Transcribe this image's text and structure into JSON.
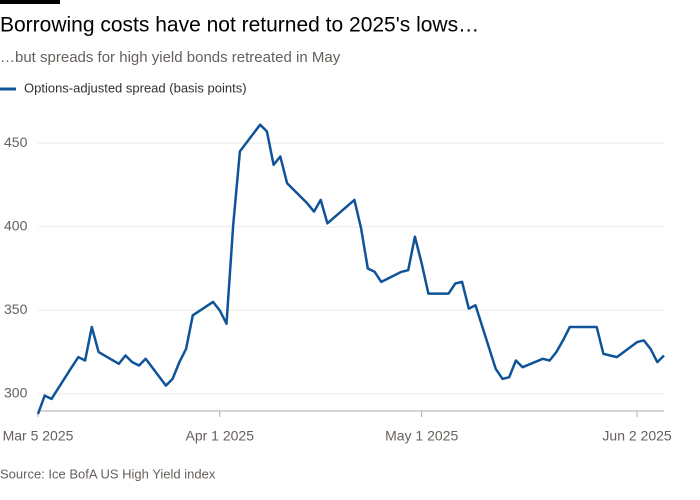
{
  "chart_data": {
    "type": "line",
    "title": "Borrowing costs have not returned to 2025's lows…",
    "subtitle": "…but spreads for high yield bonds retreated in May",
    "source": "Source: Ice BofA US High Yield index",
    "x": [
      "2025-03-05",
      "2025-03-06",
      "2025-03-07",
      "2025-03-10",
      "2025-03-11",
      "2025-03-12",
      "2025-03-13",
      "2025-03-14",
      "2025-03-17",
      "2025-03-18",
      "2025-03-19",
      "2025-03-20",
      "2025-03-21",
      "2025-03-24",
      "2025-03-25",
      "2025-03-26",
      "2025-03-27",
      "2025-03-28",
      "2025-03-31",
      "2025-04-01",
      "2025-04-02",
      "2025-04-03",
      "2025-04-04",
      "2025-04-07",
      "2025-04-08",
      "2025-04-09",
      "2025-04-10",
      "2025-04-11",
      "2025-04-14",
      "2025-04-15",
      "2025-04-16",
      "2025-04-17",
      "2025-04-21",
      "2025-04-22",
      "2025-04-23",
      "2025-04-24",
      "2025-04-25",
      "2025-04-28",
      "2025-04-29",
      "2025-04-30",
      "2025-05-01",
      "2025-05-02",
      "2025-05-05",
      "2025-05-06",
      "2025-05-07",
      "2025-05-08",
      "2025-05-09",
      "2025-05-12",
      "2025-05-13",
      "2025-05-14",
      "2025-05-15",
      "2025-05-16",
      "2025-05-19",
      "2025-05-20",
      "2025-05-21",
      "2025-05-22",
      "2025-05-23",
      "2025-05-27",
      "2025-05-28",
      "2025-05-29",
      "2025-05-30",
      "2025-06-02",
      "2025-06-03",
      "2025-06-04",
      "2025-06-05",
      "2025-06-06"
    ],
    "series": [
      {
        "name": "Options-adjusted spread (basis points)",
        "color": "#0f5499",
        "values": [
          288,
          299,
          297,
          316,
          322,
          320,
          340,
          325,
          318,
          323,
          319,
          317,
          321,
          305,
          309,
          319,
          327,
          347,
          355,
          350,
          342,
          401,
          445,
          461,
          457,
          437,
          442,
          426,
          414,
          409,
          416,
          402,
          416,
          399,
          375,
          373,
          367,
          373,
          374,
          394,
          378,
          360,
          360,
          366,
          367,
          351,
          353,
          315,
          309,
          310,
          320,
          316,
          321,
          320,
          325,
          332,
          340,
          340,
          324,
          323,
          322,
          331,
          332,
          327,
          319,
          323
        ]
      }
    ],
    "xlim": [
      "2025-03-05",
      "2025-06-06"
    ],
    "xticks": [
      {
        "value": "2025-03-05",
        "label": "Mar 5 2025"
      },
      {
        "value": "2025-04-01",
        "label": "Apr 1 2025"
      },
      {
        "value": "2025-05-01",
        "label": "May 1 2025"
      },
      {
        "value": "2025-06-02",
        "label": "Jun 2 2025"
      }
    ],
    "ylim": [
      285,
      465
    ],
    "yticks": [
      300,
      350,
      400,
      450
    ],
    "grid": true
  }
}
